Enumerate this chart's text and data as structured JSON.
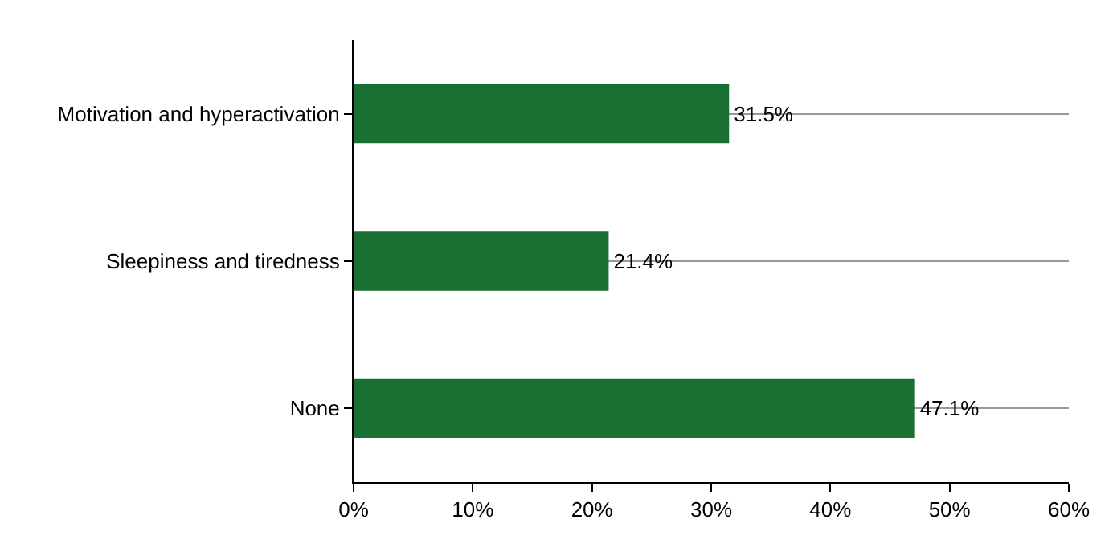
{
  "chart_data": {
    "type": "bar",
    "orientation": "horizontal",
    "categories": [
      "Motivation and hyperactivation",
      "Sleepiness and tiredness",
      "None"
    ],
    "values": [
      31.5,
      21.4,
      47.1
    ],
    "color": "#1a7032",
    "value_labels": [
      "31.5%",
      "21.4%",
      "47.1%"
    ],
    "xlim": [
      0,
      60
    ],
    "xticks": [
      {
        "value": 0,
        "label": "0%"
      },
      {
        "value": 10,
        "label": "10%"
      },
      {
        "value": 20,
        "label": "20%"
      },
      {
        "value": 30,
        "label": "30%"
      },
      {
        "value": 40,
        "label": "40%"
      },
      {
        "value": 50,
        "label": "50%"
      },
      {
        "value": 60,
        "label": "60%"
      }
    ],
    "grid": "y",
    "legend": false
  }
}
